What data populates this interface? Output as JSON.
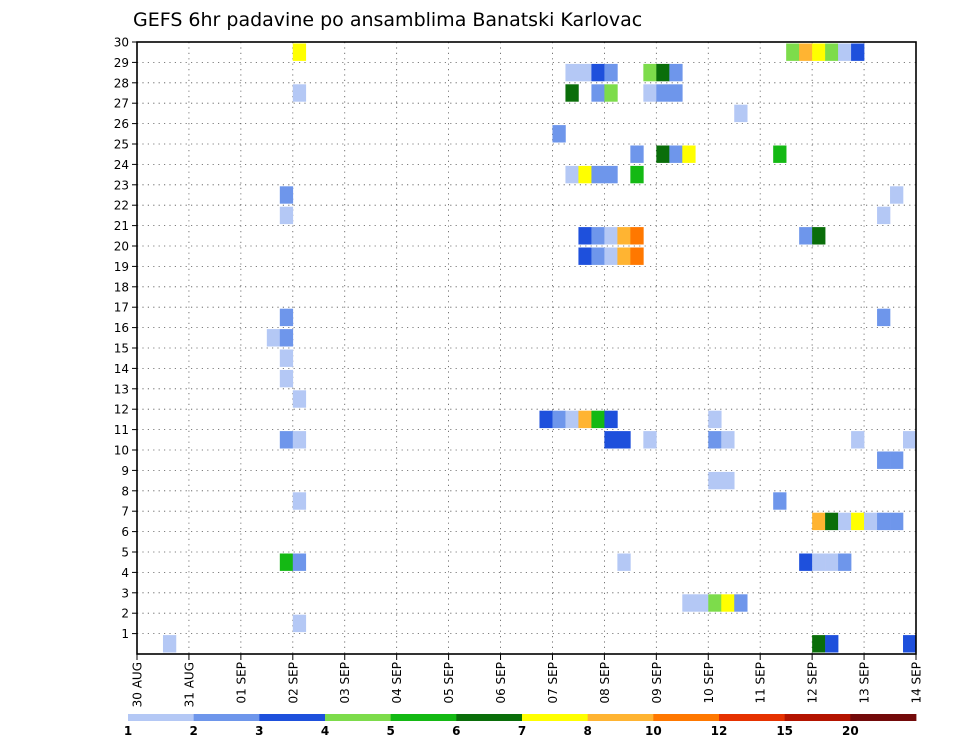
{
  "chart_data": {
    "type": "heatmap",
    "title": "GEFS 6hr padavine po ansamblima Banatski Karlovac",
    "xlabel": "",
    "ylabel": "",
    "x_tick_labels": [
      "30 AUG",
      "31 AUG",
      "01 SEP",
      "02 SEP",
      "03 SEP",
      "04 SEP",
      "05 SEP",
      "06 SEP",
      "07 SEP",
      "08 SEP",
      "09 SEP",
      "10 SEP",
      "11 SEP",
      "12 SEP",
      "13 SEP",
      "14 SEP"
    ],
    "y_tick_labels": [
      "1",
      "2",
      "3",
      "4",
      "5",
      "6",
      "7",
      "8",
      "9",
      "10",
      "11",
      "12",
      "13",
      "14",
      "15",
      "16",
      "17",
      "18",
      "19",
      "20",
      "21",
      "22",
      "23",
      "24",
      "25",
      "26",
      "27",
      "28",
      "29",
      "30"
    ],
    "xlim_steps": [
      0,
      60
    ],
    "ylim_members": [
      0,
      30
    ],
    "grid": true,
    "colorbar": {
      "position": "bottom",
      "boundaries": [
        1,
        2,
        3,
        4,
        5,
        6,
        7,
        8,
        10,
        12,
        15,
        20
      ],
      "labels": [
        "1",
        "2",
        "3",
        "4",
        "5",
        "6",
        "7",
        "8",
        "10",
        "12",
        "15",
        "20"
      ],
      "colors": [
        "#b4c8f5",
        "#6e96eb",
        "#1e50dc",
        "#7ddc4b",
        "#14b914",
        "#0a6e0a",
        "#ffff00",
        "#ffb432",
        "#ff7800",
        "#e63200",
        "#b41400",
        "#730a0a"
      ]
    },
    "points": [
      {
        "step": 2,
        "member": 0,
        "level": 0
      },
      {
        "step": 10,
        "member": 15,
        "level": 0
      },
      {
        "step": 11,
        "member": 15,
        "level": 1
      },
      {
        "step": 11,
        "member": 16,
        "level": 1
      },
      {
        "step": 11,
        "member": 14,
        "level": 0
      },
      {
        "step": 11,
        "member": 13,
        "level": 0
      },
      {
        "step": 12,
        "member": 12,
        "level": 0
      },
      {
        "step": 11,
        "member": 21,
        "level": 0
      },
      {
        "step": 11,
        "member": 22,
        "level": 1
      },
      {
        "step": 11,
        "member": 10,
        "level": 1
      },
      {
        "step": 12,
        "member": 10,
        "level": 0
      },
      {
        "step": 11,
        "member": 4,
        "level": 4
      },
      {
        "step": 12,
        "member": 4,
        "level": 1
      },
      {
        "step": 12,
        "member": 1,
        "level": 0
      },
      {
        "step": 12,
        "member": 7,
        "level": 0
      },
      {
        "step": 12,
        "member": 27,
        "level": 0
      },
      {
        "step": 12,
        "member": 29,
        "level": 6
      },
      {
        "step": 31,
        "member": 11,
        "level": 2
      },
      {
        "step": 32,
        "member": 11,
        "level": 1
      },
      {
        "step": 33,
        "member": 11,
        "level": 0
      },
      {
        "step": 34,
        "member": 11,
        "level": 7
      },
      {
        "step": 35,
        "member": 11,
        "level": 4
      },
      {
        "step": 36,
        "member": 11,
        "level": 2
      },
      {
        "step": 36,
        "member": 10,
        "level": 2
      },
      {
        "step": 37,
        "member": 10,
        "level": 2
      },
      {
        "step": 32,
        "member": 25,
        "level": 1
      },
      {
        "step": 33,
        "member": 27,
        "level": 5
      },
      {
        "step": 33,
        "member": 28,
        "level": 0
      },
      {
        "step": 34,
        "member": 28,
        "level": 0
      },
      {
        "step": 35,
        "member": 28,
        "level": 2
      },
      {
        "step": 36,
        "member": 28,
        "level": 1
      },
      {
        "step": 35,
        "member": 27,
        "level": 1
      },
      {
        "step": 36,
        "member": 27,
        "level": 3
      },
      {
        "step": 33,
        "member": 23,
        "level": 0
      },
      {
        "step": 34,
        "member": 23,
        "level": 6
      },
      {
        "step": 35,
        "member": 23,
        "level": 1
      },
      {
        "step": 36,
        "member": 23,
        "level": 1
      },
      {
        "step": 34,
        "member": 20,
        "level": 2
      },
      {
        "step": 34,
        "member": 19,
        "level": 2
      },
      {
        "step": 35,
        "member": 20,
        "level": 1
      },
      {
        "step": 35,
        "member": 19,
        "level": 1
      },
      {
        "step": 36,
        "member": 20,
        "level": 0
      },
      {
        "step": 36,
        "member": 19,
        "level": 0
      },
      {
        "step": 37,
        "member": 20,
        "level": 7
      },
      {
        "step": 37,
        "member": 19,
        "level": 7
      },
      {
        "step": 38,
        "member": 20,
        "level": 8
      },
      {
        "step": 38,
        "member": 19,
        "level": 8
      },
      {
        "step": 38,
        "member": 24,
        "level": 1
      },
      {
        "step": 38,
        "member": 23,
        "level": 4
      },
      {
        "step": 37,
        "member": 4,
        "level": 0
      },
      {
        "step": 39,
        "member": 28,
        "level": 3
      },
      {
        "step": 40,
        "member": 28,
        "level": 5
      },
      {
        "step": 41,
        "member": 28,
        "level": 1
      },
      {
        "step": 39,
        "member": 27,
        "level": 0
      },
      {
        "step": 40,
        "member": 27,
        "level": 1
      },
      {
        "step": 41,
        "member": 27,
        "level": 1
      },
      {
        "step": 40,
        "member": 24,
        "level": 5
      },
      {
        "step": 41,
        "member": 24,
        "level": 1
      },
      {
        "step": 42,
        "member": 24,
        "level": 6
      },
      {
        "step": 39,
        "member": 10,
        "level": 0
      },
      {
        "step": 42,
        "member": 2,
        "level": 0
      },
      {
        "step": 43,
        "member": 2,
        "level": 0
      },
      {
        "step": 44,
        "member": 2,
        "level": 3
      },
      {
        "step": 45,
        "member": 2,
        "level": 6
      },
      {
        "step": 46,
        "member": 2,
        "level": 1
      },
      {
        "step": 44,
        "member": 11,
        "level": 0
      },
      {
        "step": 44,
        "member": 10,
        "level": 1
      },
      {
        "step": 45,
        "member": 10,
        "level": 0
      },
      {
        "step": 44,
        "member": 8,
        "level": 0
      },
      {
        "step": 45,
        "member": 8,
        "level": 0
      },
      {
        "step": 46,
        "member": 26,
        "level": 0
      },
      {
        "step": 49,
        "member": 24,
        "level": 4
      },
      {
        "step": 49,
        "member": 7,
        "level": 1
      },
      {
        "step": 50,
        "member": 29,
        "level": 3
      },
      {
        "step": 51,
        "member": 29,
        "level": 7
      },
      {
        "step": 52,
        "member": 29,
        "level": 6
      },
      {
        "step": 53,
        "member": 29,
        "level": 3
      },
      {
        "step": 54,
        "member": 29,
        "level": 0
      },
      {
        "step": 55,
        "member": 29,
        "level": 2
      },
      {
        "step": 51,
        "member": 20,
        "level": 1
      },
      {
        "step": 52,
        "member": 20,
        "level": 5
      },
      {
        "step": 51,
        "member": 4,
        "level": 2
      },
      {
        "step": 52,
        "member": 4,
        "level": 0
      },
      {
        "step": 53,
        "member": 4,
        "level": 0
      },
      {
        "step": 54,
        "member": 4,
        "level": 1
      },
      {
        "step": 52,
        "member": 6,
        "level": 7
      },
      {
        "step": 53,
        "member": 6,
        "level": 5
      },
      {
        "step": 54,
        "member": 6,
        "level": 0
      },
      {
        "step": 55,
        "member": 6,
        "level": 6
      },
      {
        "step": 56,
        "member": 6,
        "level": 0
      },
      {
        "step": 57,
        "member": 6,
        "level": 1
      },
      {
        "step": 58,
        "member": 6,
        "level": 1
      },
      {
        "step": 52,
        "member": 0,
        "level": 5
      },
      {
        "step": 53,
        "member": 0,
        "level": 2
      },
      {
        "step": 55,
        "member": 10,
        "level": 0
      },
      {
        "step": 57,
        "member": 21,
        "level": 0
      },
      {
        "step": 58,
        "member": 22,
        "level": 0
      },
      {
        "step": 57,
        "member": 16,
        "level": 1
      },
      {
        "step": 57,
        "member": 9,
        "level": 1
      },
      {
        "step": 58,
        "member": 9,
        "level": 1
      },
      {
        "step": 59,
        "member": 10,
        "level": 0
      },
      {
        "step": 59,
        "member": 0,
        "level": 2
      }
    ]
  }
}
